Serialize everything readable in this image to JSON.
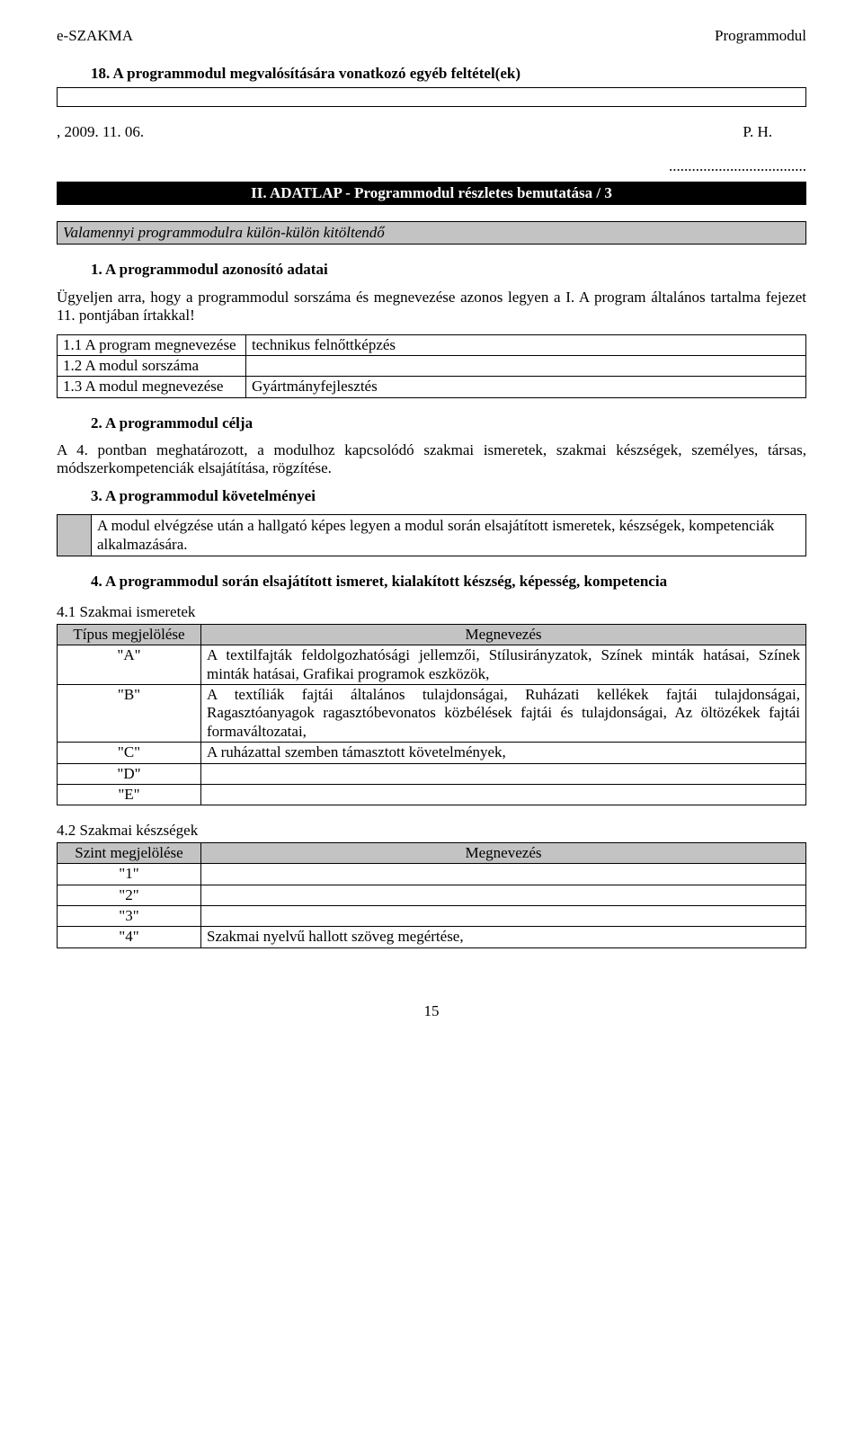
{
  "header": {
    "left": "e-SZAKMA",
    "right": "Programmodul"
  },
  "s18_title": "18. A programmodul megvalósítására vonatkozó egyéb feltétel(ek)",
  "date_row": {
    "left": ", 2009. 11. 06.",
    "right": "P. H."
  },
  "black_dots_prefix": "....................................",
  "black_bar": "II. ADATLAP - Programmodul részletes bemutatása / 3",
  "grey_note": "Valamennyi programmodulra külön-külön kitöltendő",
  "s1_title": "1. A programmodul azonosító adatai",
  "s1_para": "Ügyeljen arra, hogy a programmodul sorszáma és megnevezése azonos legyen a I. A program általános tartalma fejezet 11. pontjában írtakkal!",
  "t1": {
    "r1": {
      "c1": "1.1 A program megnevezése",
      "c2": "technikus felnőttképzés"
    },
    "r2": {
      "c1": "1.2 A modul sorszáma",
      "c2": ""
    },
    "r3": {
      "c1": "1.3 A modul megnevezése",
      "c2": "Gyártmányfejlesztés"
    }
  },
  "s2_title": "2. A programmodul célja",
  "s2_para": "A 4. pontban meghatározott, a modulhoz kapcsolódó szakmai ismeretek, szakmai készségek, személyes, társas, módszerkompetenciák elsajátítása, rögzítése.",
  "s3_title": "3. A programmodul követelményei",
  "s3_req": "A modul elvégzése után a hallgató képes legyen a modul során elsajátított ismeretek, készségek, kompetenciák alkalmazására.",
  "s4_title": "4. A programmodul során elsajátított ismeret, kialakított készség, képesség, kompetencia",
  "s41_label": "4.1 Szakmai ismeretek",
  "t41": {
    "hdr": {
      "c1": "Típus megjelölése",
      "c2": "Megnevezés"
    },
    "rows": [
      {
        "c1": "\"A\"",
        "c2": "A textilfajták feldolgozhatósági jellemzői, Stílusirányzatok, Színek minták hatásai, Színek minták hatásai, Grafikai programok eszközök,"
      },
      {
        "c1": "\"B\"",
        "c2": "A textíliák fajtái általános tulajdonságai, Ruházati kellékek fajtái tulajdonságai, Ragasztóanyagok ragasztóbevonatos közbélések fajtái és tulajdonságai, Az öltözékek fajtái formaváltozatai,"
      },
      {
        "c1": "\"C\"",
        "c2": "A ruházattal szemben támasztott követelmények,"
      },
      {
        "c1": "\"D\"",
        "c2": ""
      },
      {
        "c1": "\"E\"",
        "c2": ""
      }
    ]
  },
  "s42_label": "4.2 Szakmai készségek",
  "t42": {
    "hdr": {
      "c1": "Szint megjelölése",
      "c2": "Megnevezés"
    },
    "rows": [
      {
        "c1": "\"1\"",
        "c2": ""
      },
      {
        "c1": "\"2\"",
        "c2": ""
      },
      {
        "c1": "\"3\"",
        "c2": ""
      },
      {
        "c1": "\"4\"",
        "c2": "Szakmai nyelvű hallott szöveg megértése,"
      }
    ]
  },
  "page_number": "15"
}
